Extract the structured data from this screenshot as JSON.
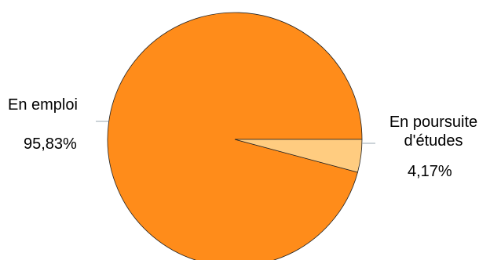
{
  "chart_data": {
    "type": "pie",
    "title": "",
    "slices": [
      {
        "name_lines": [
          "En emploi"
        ],
        "value": 95.83,
        "value_label": "95,83%",
        "color": "#FF8C1A"
      },
      {
        "name_lines": [
          "En poursuite",
          "d'études"
        ],
        "value": 4.17,
        "value_label": "4,17%",
        "color": "#FFCC80"
      }
    ],
    "outline_color": "#222222",
    "leader_color": "#9aa7b0",
    "legend": "none"
  }
}
